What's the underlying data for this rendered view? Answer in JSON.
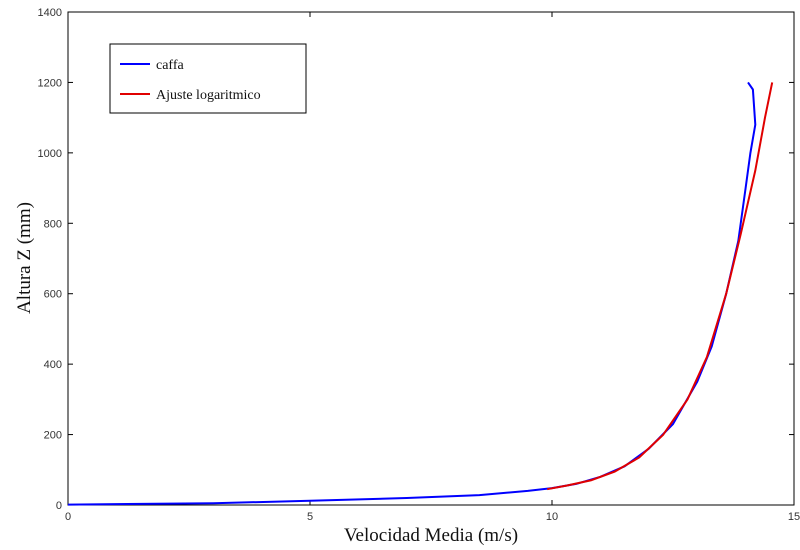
{
  "chart_data": {
    "type": "line",
    "title": "",
    "xlabel": "Velocidad Media (m/s)",
    "ylabel": "Altura Z (mm)",
    "xlim": [
      0,
      15
    ],
    "ylim": [
      0,
      1400
    ],
    "xticks": [
      0,
      5,
      10,
      15
    ],
    "yticks": [
      0,
      200,
      400,
      600,
      800,
      1000,
      1200,
      1400
    ],
    "grid": false,
    "legend_position": "top-left",
    "series": [
      {
        "name": "caffa",
        "color": "#0000ff",
        "points": [
          [
            0,
            1
          ],
          [
            3,
            5
          ],
          [
            5,
            12
          ],
          [
            7,
            20
          ],
          [
            8.5,
            28
          ],
          [
            9.5,
            40
          ],
          [
            10,
            48
          ],
          [
            10.5,
            60
          ],
          [
            11,
            80
          ],
          [
            11.5,
            110
          ],
          [
            12,
            160
          ],
          [
            12.5,
            230
          ],
          [
            13,
            350
          ],
          [
            13.3,
            450
          ],
          [
            13.6,
            600
          ],
          [
            13.85,
            750
          ],
          [
            14,
            900
          ],
          [
            14.1,
            1000
          ],
          [
            14.2,
            1080
          ],
          [
            14.15,
            1180
          ],
          [
            14.05,
            1200
          ]
        ]
      },
      {
        "name": "Ajuste logaritmico",
        "color": "#e00000",
        "points": [
          [
            9.9,
            45
          ],
          [
            10.3,
            55
          ],
          [
            10.8,
            70
          ],
          [
            11.3,
            95
          ],
          [
            11.8,
            135
          ],
          [
            12.3,
            200
          ],
          [
            12.8,
            300
          ],
          [
            13.2,
            420
          ],
          [
            13.6,
            600
          ],
          [
            13.9,
            770
          ],
          [
            14.2,
            950
          ],
          [
            14.4,
            1100
          ],
          [
            14.55,
            1200
          ]
        ]
      }
    ]
  }
}
